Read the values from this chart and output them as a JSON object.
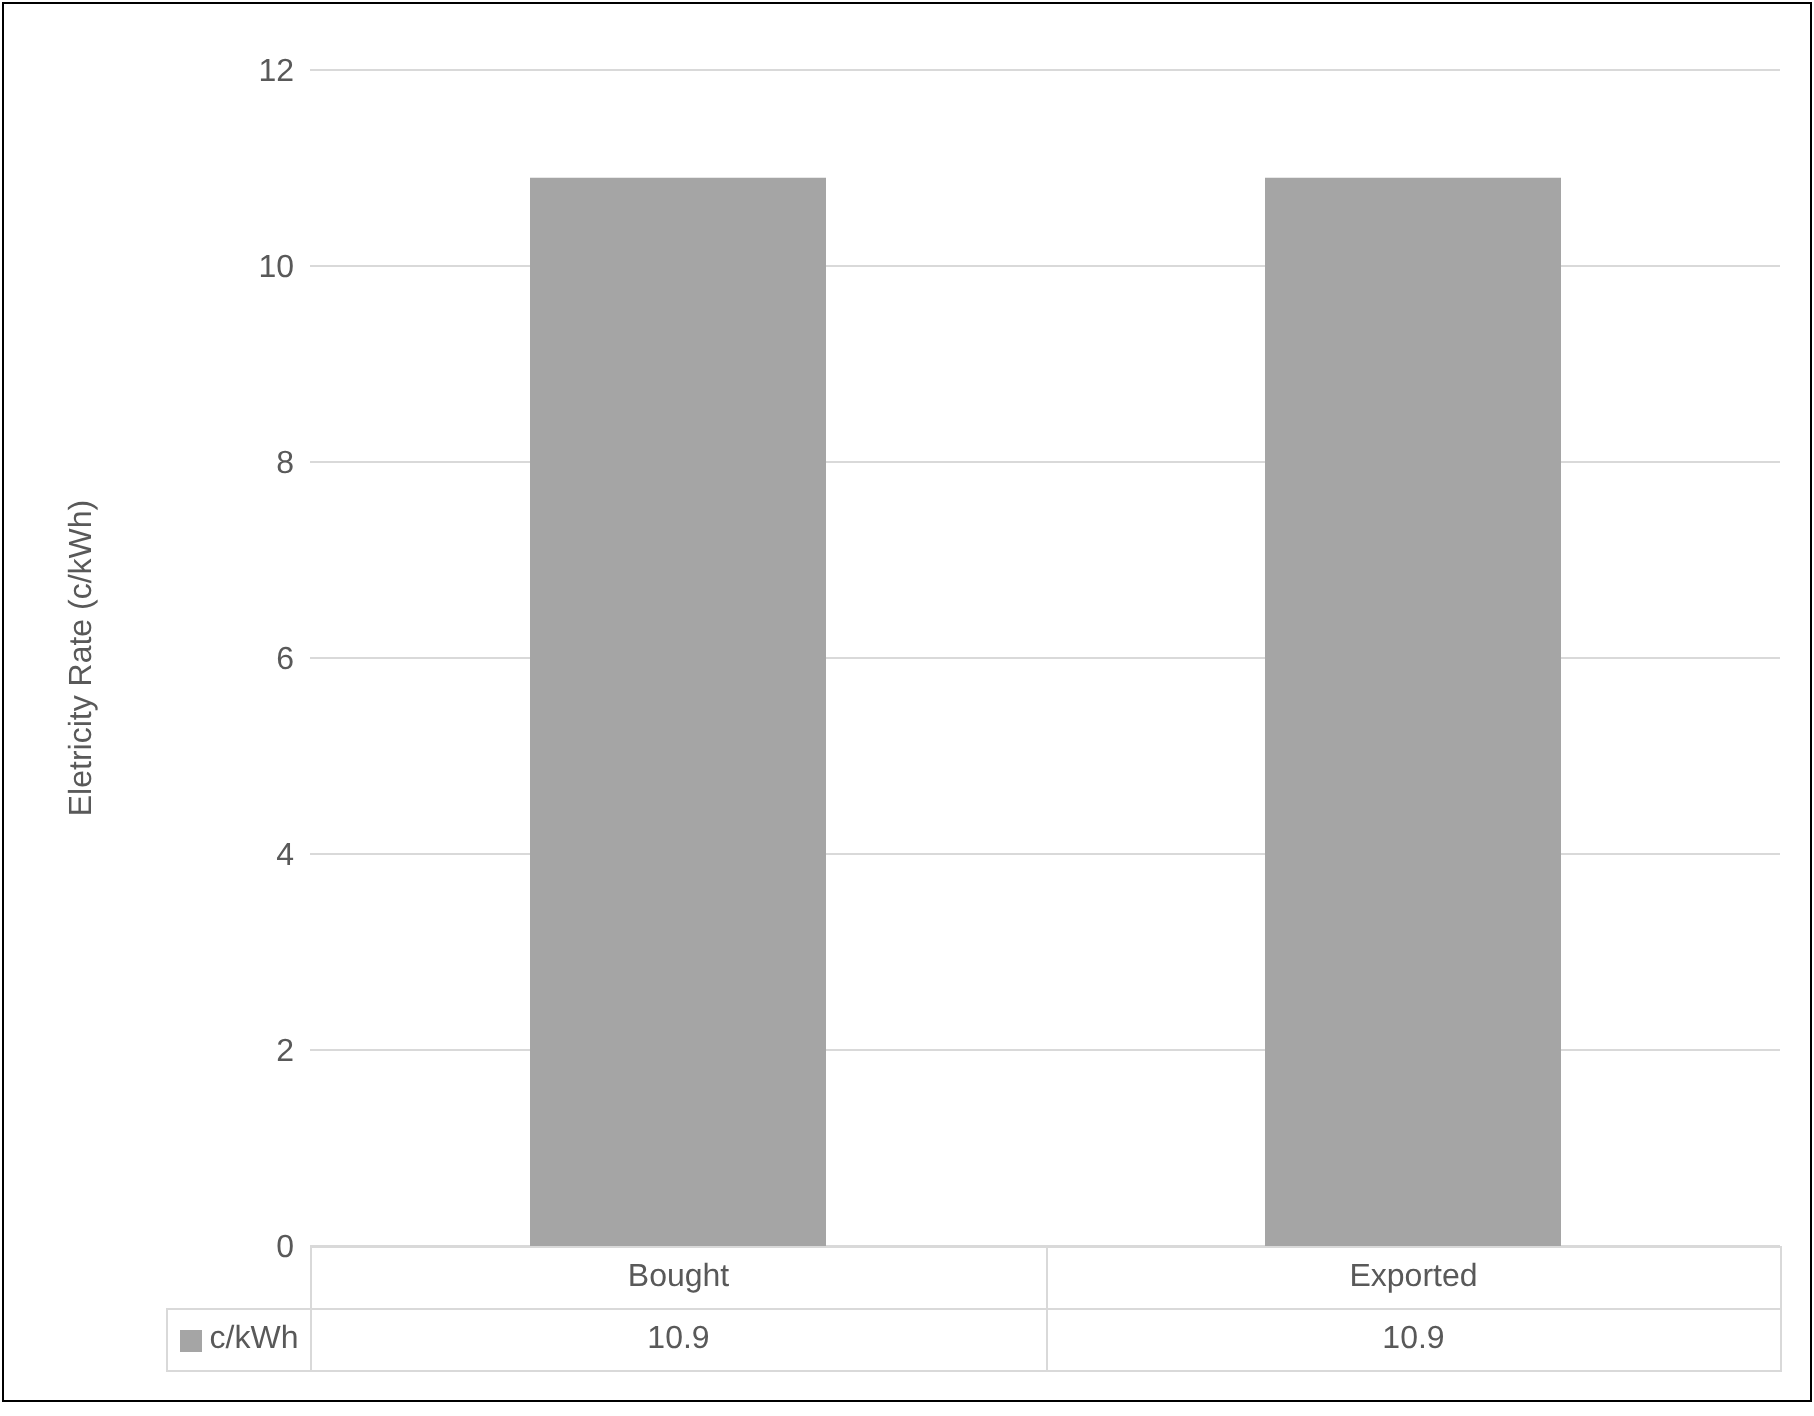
{
  "chart_data": {
    "type": "bar",
    "ylabel": "Eletricity Rate (c/kWh)",
    "categories": [
      "Bought",
      "Exported"
    ],
    "series": [
      {
        "name": "c/kWh",
        "color": "#a5a5a5",
        "values": [
          10.9,
          10.9
        ]
      }
    ],
    "ylim": [
      0,
      12
    ],
    "yticks": [
      0,
      2,
      4,
      6,
      8,
      10,
      12
    ],
    "grid": "y",
    "legend": "bottom left",
    "data_labels": true
  }
}
